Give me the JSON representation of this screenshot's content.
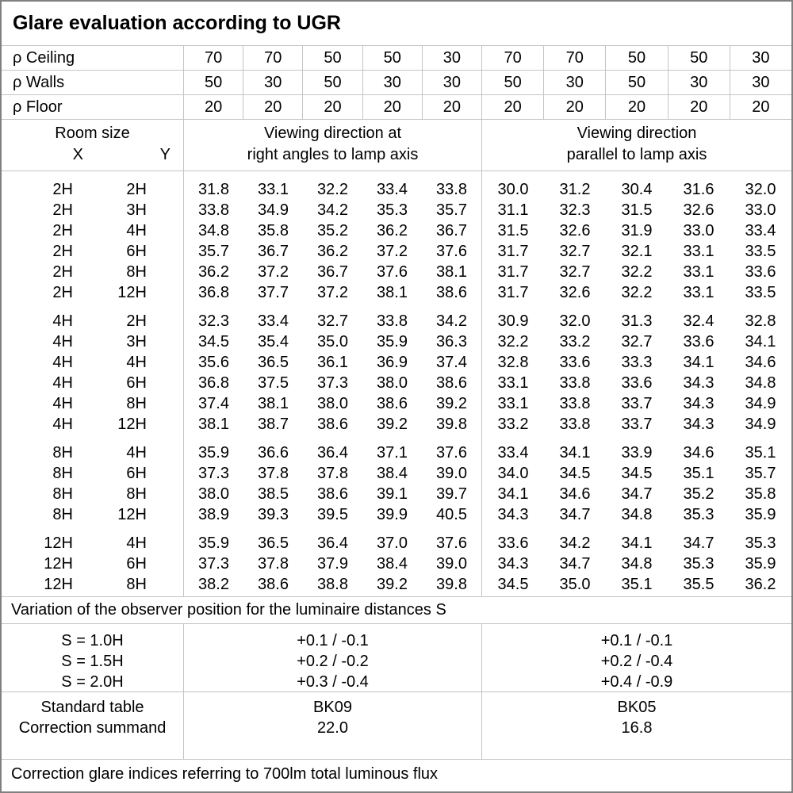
{
  "title": "Glare evaluation according to UGR",
  "reflectances": {
    "ceiling_label": "ρ Ceiling",
    "walls_label": "ρ Walls",
    "floor_label": "ρ Floor",
    "ceiling": [
      "70",
      "70",
      "50",
      "50",
      "30",
      "70",
      "70",
      "50",
      "50",
      "30"
    ],
    "walls": [
      "50",
      "30",
      "50",
      "30",
      "30",
      "50",
      "30",
      "50",
      "30",
      "30"
    ],
    "floor": [
      "20",
      "20",
      "20",
      "20",
      "20",
      "20",
      "20",
      "20",
      "20",
      "20"
    ]
  },
  "header": {
    "room_size": "Room size",
    "x": "X",
    "y": "Y",
    "right_angle_line1": "Viewing direction at",
    "right_angle_line2": "right angles to lamp axis",
    "parallel_line1": "Viewing direction",
    "parallel_line2": "parallel to lamp axis"
  },
  "ugr_blocks": [
    {
      "rows": [
        {
          "x": "2H",
          "y": "2H",
          "right_angle": [
            "31.8",
            "33.1",
            "32.2",
            "33.4",
            "33.8"
          ],
          "parallel": [
            "30.0",
            "31.2",
            "30.4",
            "31.6",
            "32.0"
          ]
        },
        {
          "x": "2H",
          "y": "3H",
          "right_angle": [
            "33.8",
            "34.9",
            "34.2",
            "35.3",
            "35.7"
          ],
          "parallel": [
            "31.1",
            "32.3",
            "31.5",
            "32.6",
            "33.0"
          ]
        },
        {
          "x": "2H",
          "y": "4H",
          "right_angle": [
            "34.8",
            "35.8",
            "35.2",
            "36.2",
            "36.7"
          ],
          "parallel": [
            "31.5",
            "32.6",
            "31.9",
            "33.0",
            "33.4"
          ]
        },
        {
          "x": "2H",
          "y": "6H",
          "right_angle": [
            "35.7",
            "36.7",
            "36.2",
            "37.2",
            "37.6"
          ],
          "parallel": [
            "31.7",
            "32.7",
            "32.1",
            "33.1",
            "33.5"
          ]
        },
        {
          "x": "2H",
          "y": "8H",
          "right_angle": [
            "36.2",
            "37.2",
            "36.7",
            "37.6",
            "38.1"
          ],
          "parallel": [
            "31.7",
            "32.7",
            "32.2",
            "33.1",
            "33.6"
          ]
        },
        {
          "x": "2H",
          "y": "12H",
          "right_angle": [
            "36.8",
            "37.7",
            "37.2",
            "38.1",
            "38.6"
          ],
          "parallel": [
            "31.7",
            "32.6",
            "32.2",
            "33.1",
            "33.5"
          ]
        }
      ]
    },
    {
      "rows": [
        {
          "x": "4H",
          "y": "2H",
          "right_angle": [
            "32.3",
            "33.4",
            "32.7",
            "33.8",
            "34.2"
          ],
          "parallel": [
            "30.9",
            "32.0",
            "31.3",
            "32.4",
            "32.8"
          ]
        },
        {
          "x": "4H",
          "y": "3H",
          "right_angle": [
            "34.5",
            "35.4",
            "35.0",
            "35.9",
            "36.3"
          ],
          "parallel": [
            "32.2",
            "33.2",
            "32.7",
            "33.6",
            "34.1"
          ]
        },
        {
          "x": "4H",
          "y": "4H",
          "right_angle": [
            "35.6",
            "36.5",
            "36.1",
            "36.9",
            "37.4"
          ],
          "parallel": [
            "32.8",
            "33.6",
            "33.3",
            "34.1",
            "34.6"
          ]
        },
        {
          "x": "4H",
          "y": "6H",
          "right_angle": [
            "36.8",
            "37.5",
            "37.3",
            "38.0",
            "38.6"
          ],
          "parallel": [
            "33.1",
            "33.8",
            "33.6",
            "34.3",
            "34.8"
          ]
        },
        {
          "x": "4H",
          "y": "8H",
          "right_angle": [
            "37.4",
            "38.1",
            "38.0",
            "38.6",
            "39.2"
          ],
          "parallel": [
            "33.1",
            "33.8",
            "33.7",
            "34.3",
            "34.9"
          ]
        },
        {
          "x": "4H",
          "y": "12H",
          "right_angle": [
            "38.1",
            "38.7",
            "38.6",
            "39.2",
            "39.8"
          ],
          "parallel": [
            "33.2",
            "33.8",
            "33.7",
            "34.3",
            "34.9"
          ]
        }
      ]
    },
    {
      "rows": [
        {
          "x": "8H",
          "y": "4H",
          "right_angle": [
            "35.9",
            "36.6",
            "36.4",
            "37.1",
            "37.6"
          ],
          "parallel": [
            "33.4",
            "34.1",
            "33.9",
            "34.6",
            "35.1"
          ]
        },
        {
          "x": "8H",
          "y": "6H",
          "right_angle": [
            "37.3",
            "37.8",
            "37.8",
            "38.4",
            "39.0"
          ],
          "parallel": [
            "34.0",
            "34.5",
            "34.5",
            "35.1",
            "35.7"
          ]
        },
        {
          "x": "8H",
          "y": "8H",
          "right_angle": [
            "38.0",
            "38.5",
            "38.6",
            "39.1",
            "39.7"
          ],
          "parallel": [
            "34.1",
            "34.6",
            "34.7",
            "35.2",
            "35.8"
          ]
        },
        {
          "x": "8H",
          "y": "12H",
          "right_angle": [
            "38.9",
            "39.3",
            "39.5",
            "39.9",
            "40.5"
          ],
          "parallel": [
            "34.3",
            "34.7",
            "34.8",
            "35.3",
            "35.9"
          ]
        }
      ]
    },
    {
      "rows": [
        {
          "x": "12H",
          "y": "4H",
          "right_angle": [
            "35.9",
            "36.5",
            "36.4",
            "37.0",
            "37.6"
          ],
          "parallel": [
            "33.6",
            "34.2",
            "34.1",
            "34.7",
            "35.3"
          ]
        },
        {
          "x": "12H",
          "y": "6H",
          "right_angle": [
            "37.3",
            "37.8",
            "37.9",
            "38.4",
            "39.0"
          ],
          "parallel": [
            "34.3",
            "34.7",
            "34.8",
            "35.3",
            "35.9"
          ]
        },
        {
          "x": "12H",
          "y": "8H",
          "right_angle": [
            "38.2",
            "38.6",
            "38.8",
            "39.2",
            "39.8"
          ],
          "parallel": [
            "34.5",
            "35.0",
            "35.1",
            "35.5",
            "36.2"
          ]
        }
      ]
    }
  ],
  "variation": {
    "note": "Variation of the observer position for the luminaire distances S",
    "rows": [
      {
        "label": "S = 1.0H",
        "right_angle": "+0.1 / -0.1",
        "parallel": "+0.1 / -0.1"
      },
      {
        "label": "S = 1.5H",
        "right_angle": "+0.2 / -0.2",
        "parallel": "+0.2 / -0.4"
      },
      {
        "label": "S = 2.0H",
        "right_angle": "+0.3 / -0.4",
        "parallel": "+0.4 / -0.9"
      }
    ]
  },
  "standard": {
    "table_label": "Standard table",
    "summand_label": "Correction summand",
    "right_angle_table": "BK09",
    "right_angle_summand": "22.0",
    "parallel_table": "BK05",
    "parallel_summand": "16.8"
  },
  "footer": "Correction glare indices referring to 700lm total luminous flux",
  "colors": {
    "grid_line": "#c4c4c4",
    "outer_border": "#808080",
    "text": "#000000",
    "background": "#ffffff"
  }
}
